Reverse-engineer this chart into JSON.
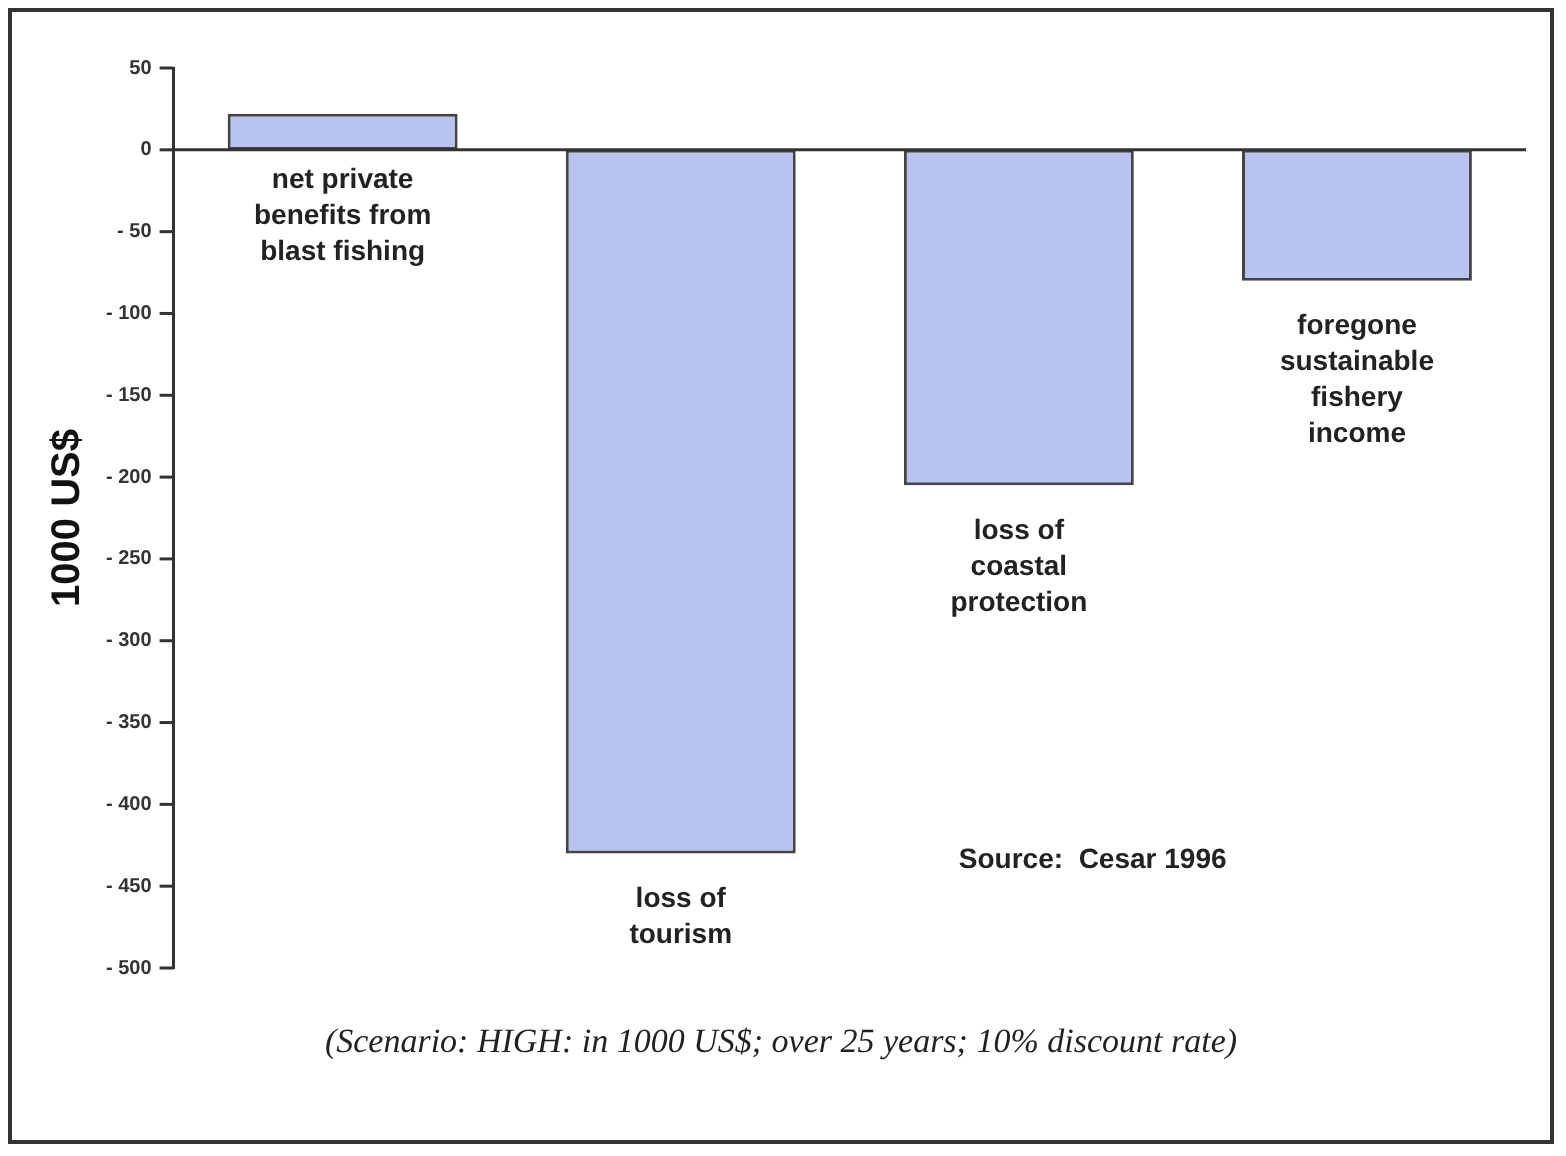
{
  "chart_data": {
    "type": "bar",
    "ylabel": "1000 US$",
    "categories": [
      "net private benefits from blast fishing",
      "loss of tourism",
      "loss of coastal protection",
      "foregone sustainable fishery income"
    ],
    "values": [
      22,
      -430,
      -205,
      -80
    ],
    "color": "#b9c3f0",
    "ylim": [
      -500,
      50
    ],
    "yticks": [
      50,
      0,
      {
        "value": -50,
        "label": "- 50"
      },
      {
        "value": -100,
        "label": "- 100"
      },
      {
        "value": -150,
        "label": "- 150"
      },
      {
        "value": -200,
        "label": "- 200"
      },
      {
        "value": -250,
        "label": "- 250"
      },
      {
        "value": -300,
        "label": "- 300"
      },
      {
        "value": -350,
        "label": "- 350"
      },
      {
        "value": -400,
        "label": "- 400"
      },
      {
        "value": -450,
        "label": "- 450"
      },
      {
        "value": -500,
        "label": "- 500"
      }
    ],
    "legend": false,
    "annotations": [
      "Source:  Cesar 1996",
      "(Scenario: HIGH: in 1000 US$; over 25 years; 10% discount rate)"
    ]
  }
}
